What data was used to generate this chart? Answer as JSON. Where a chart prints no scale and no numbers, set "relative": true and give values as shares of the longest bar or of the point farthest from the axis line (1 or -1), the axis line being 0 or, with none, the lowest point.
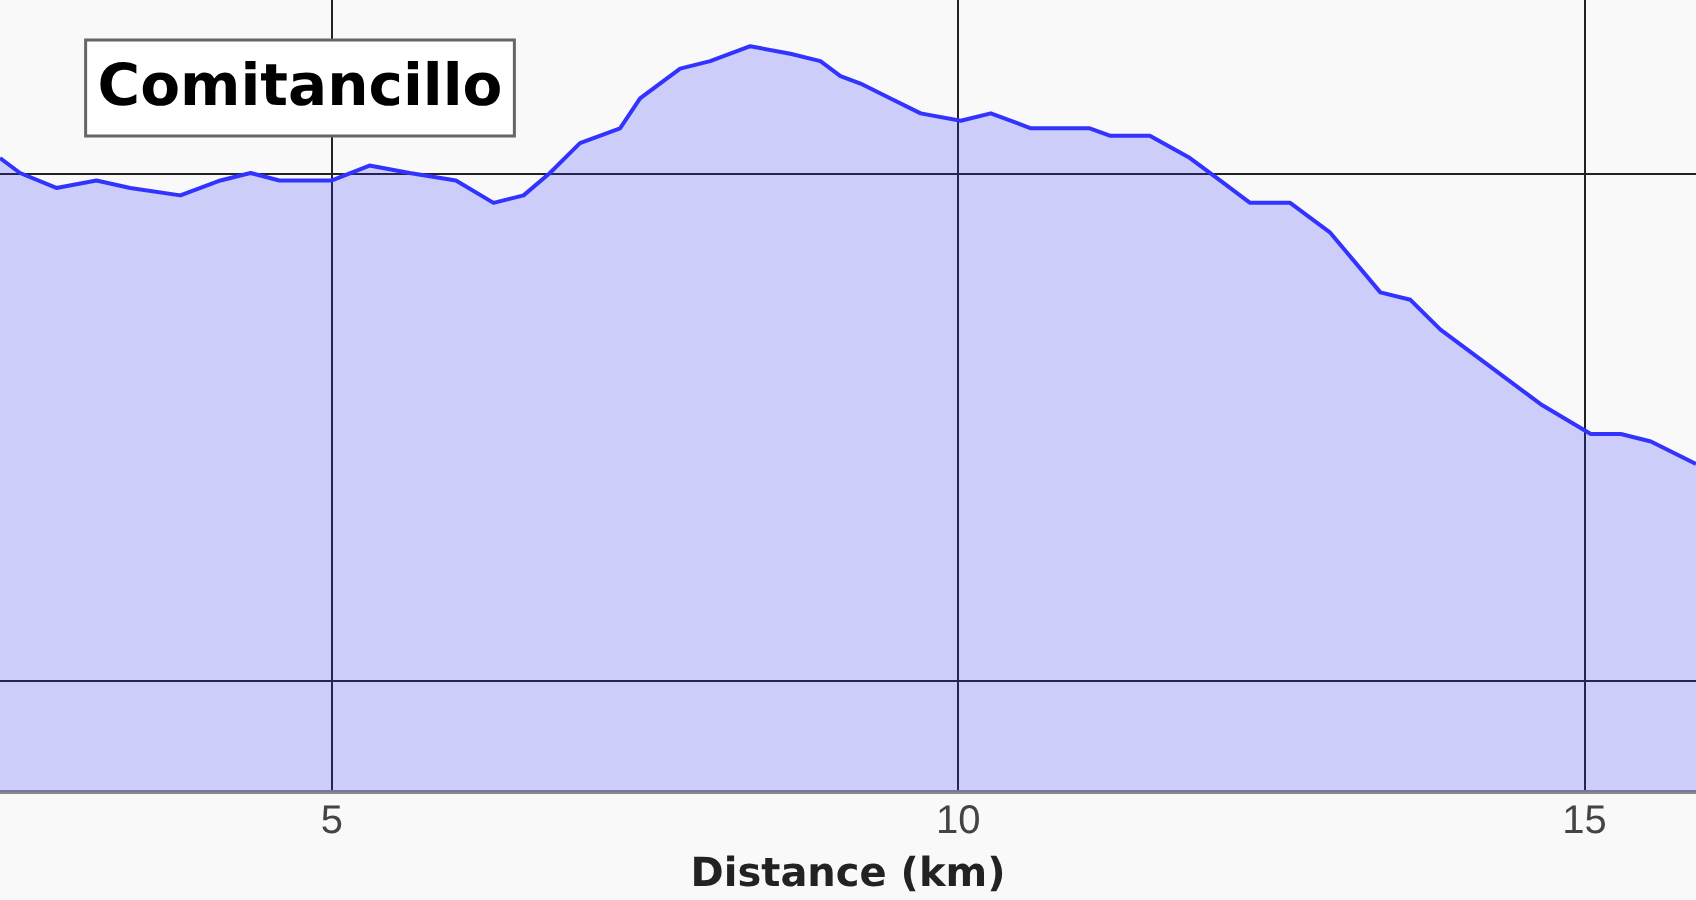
{
  "chart_data": {
    "type": "area",
    "relative": true,
    "xlabel": "Distance (km)",
    "xlim": [
      2.35,
      15.89
    ],
    "xticks": [
      5,
      10,
      15
    ],
    "grid": true,
    "legend": false,
    "annotations": [
      "Comitancillo"
    ],
    "series": [
      {
        "color": "#3333ff",
        "x": [
          2.35,
          2.51,
          2.8,
          3.12,
          3.39,
          3.79,
          4.11,
          4.35,
          4.58,
          5.0,
          5.3,
          5.62,
          5.99,
          6.29,
          6.53,
          6.74,
          6.98,
          7.3,
          7.46,
          7.78,
          8.02,
          8.34,
          8.66,
          8.9,
          9.06,
          9.22,
          9.46,
          9.7,
          10.02,
          10.26,
          10.58,
          11.05,
          11.21,
          11.53,
          11.85,
          12.09,
          12.33,
          12.65,
          12.97,
          13.37,
          13.61,
          13.85,
          14.25,
          14.65,
          15.05,
          15.29,
          15.53,
          15.89
        ],
        "values": [
          0.85,
          0.83,
          0.81,
          0.82,
          0.81,
          0.8,
          0.82,
          0.83,
          0.82,
          0.82,
          0.84,
          0.83,
          0.82,
          0.79,
          0.8,
          0.83,
          0.87,
          0.89,
          0.93,
          0.97,
          0.98,
          1,
          0.99,
          0.98,
          0.96,
          0.95,
          0.93,
          0.91,
          0.9,
          0.91,
          0.89,
          0.89,
          0.88,
          0.88,
          0.85,
          0.82,
          0.79,
          0.79,
          0.75,
          0.67,
          0.66,
          0.62,
          0.57,
          0.52,
          0.48,
          0.48,
          0.47,
          0.44
        ]
      }
    ]
  }
}
